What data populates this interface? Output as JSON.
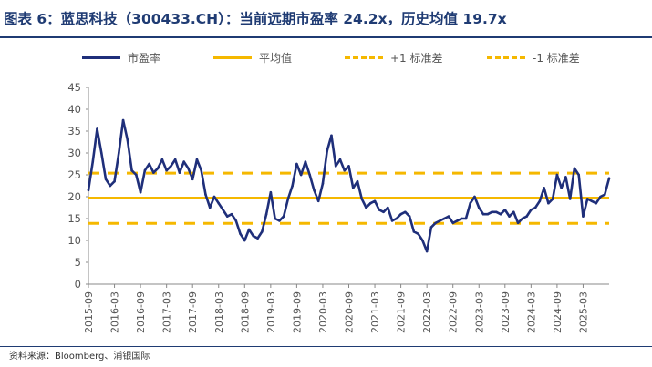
{
  "title": "图表 6：蓝思科技（300433.CH）：当前远期市盈率 24.2x，历史均值 19.7x",
  "source": "资料来源：Bloomberg、浦银国际",
  "colors": {
    "pe": "#1f2f7a",
    "mean": "#f5b800",
    "band": "#f5b800",
    "title": "#1f3b73"
  },
  "chart_data": {
    "type": "line",
    "ylim": [
      0,
      45
    ],
    "yticks": [
      0,
      5,
      10,
      15,
      20,
      25,
      30,
      35,
      40,
      45
    ],
    "xticks": [
      "2015-09",
      "2016-03",
      "2016-09",
      "2017-03",
      "2017-09",
      "2018-03",
      "2018-09",
      "2019-03",
      "2019-09",
      "2020-03",
      "2020-09",
      "2021-03",
      "2021-09",
      "2022-03",
      "2022-09",
      "2023-03",
      "2023-09",
      "2024-03",
      "2024-09",
      "2025-03"
    ],
    "xrange": [
      "2015-09",
      "2025-09"
    ],
    "grid": false,
    "legend_position": "top",
    "mean": 19.7,
    "plus1": 25.4,
    "minus1": 13.9,
    "legend": [
      "市盈率",
      "平均值",
      "+1 标准差",
      "-1 标准差"
    ],
    "series": [
      {
        "name": "市盈率",
        "x": [
          "2015-09",
          "2015-10",
          "2015-11",
          "2015-12",
          "2016-01",
          "2016-02",
          "2016-03",
          "2016-04",
          "2016-05",
          "2016-06",
          "2016-07",
          "2016-08",
          "2016-09",
          "2016-10",
          "2016-11",
          "2016-12",
          "2017-01",
          "2017-02",
          "2017-03",
          "2017-04",
          "2017-05",
          "2017-06",
          "2017-07",
          "2017-08",
          "2017-09",
          "2017-10",
          "2017-11",
          "2017-12",
          "2018-01",
          "2018-02",
          "2018-03",
          "2018-04",
          "2018-05",
          "2018-06",
          "2018-07",
          "2018-08",
          "2018-09",
          "2018-10",
          "2018-11",
          "2018-12",
          "2019-01",
          "2019-02",
          "2019-03",
          "2019-04",
          "2019-05",
          "2019-06",
          "2019-07",
          "2019-08",
          "2019-09",
          "2019-10",
          "2019-11",
          "2019-12",
          "2020-01",
          "2020-02",
          "2020-03",
          "2020-04",
          "2020-05",
          "2020-06",
          "2020-07",
          "2020-08",
          "2020-09",
          "2020-10",
          "2020-11",
          "2020-12",
          "2021-01",
          "2021-02",
          "2021-03",
          "2021-04",
          "2021-05",
          "2021-06",
          "2021-07",
          "2021-08",
          "2021-09",
          "2021-10",
          "2021-11",
          "2021-12",
          "2022-01",
          "2022-02",
          "2022-03",
          "2022-04",
          "2022-05",
          "2022-06",
          "2022-07",
          "2022-08",
          "2022-09",
          "2022-10",
          "2022-11",
          "2022-12",
          "2023-01",
          "2023-02",
          "2023-03",
          "2023-04",
          "2023-05",
          "2023-06",
          "2023-07",
          "2023-08",
          "2023-09",
          "2023-10",
          "2023-11",
          "2023-12",
          "2024-01",
          "2024-02",
          "2024-03",
          "2024-04",
          "2024-05",
          "2024-06",
          "2024-07",
          "2024-08",
          "2024-09",
          "2024-10",
          "2024-11",
          "2024-12",
          "2025-01",
          "2025-02",
          "2025-03",
          "2025-04",
          "2025-05",
          "2025-06",
          "2025-07",
          "2025-08",
          "2025-09"
        ],
        "values": [
          21.5,
          28.0,
          35.5,
          30.0,
          24.0,
          22.5,
          23.5,
          30.0,
          37.5,
          33.0,
          26.0,
          25.0,
          21.0,
          26.0,
          27.5,
          25.5,
          26.5,
          28.5,
          26.0,
          27.0,
          28.5,
          25.5,
          28.0,
          26.5,
          24.0,
          28.5,
          26.0,
          20.5,
          17.5,
          20.0,
          18.5,
          17.0,
          15.5,
          16.0,
          14.5,
          11.5,
          10.0,
          12.5,
          11.0,
          10.5,
          12.0,
          16.0,
          21.0,
          15.0,
          14.5,
          15.5,
          19.5,
          22.5,
          27.5,
          25.0,
          28.0,
          25.0,
          21.5,
          19.0,
          23.0,
          30.5,
          34.0,
          27.0,
          28.5,
          26.0,
          27.0,
          22.0,
          23.5,
          19.5,
          17.5,
          18.5,
          19.0,
          17.0,
          16.5,
          17.5,
          14.5,
          15.0,
          16.0,
          16.5,
          15.5,
          12.0,
          11.5,
          10.0,
          7.5,
          13.0,
          14.0,
          14.5,
          15.0,
          15.5,
          14.0,
          14.5,
          15.0,
          15.0,
          18.5,
          20.0,
          17.5,
          16.0,
          16.0,
          16.5,
          16.5,
          16.0,
          17.0,
          15.5,
          16.5,
          14.0,
          15.0,
          15.5,
          17.0,
          17.5,
          19.0,
          22.0,
          18.5,
          19.5,
          25.0,
          22.0,
          24.5,
          19.5,
          26.5,
          25.0,
          15.5,
          19.5,
          19.0,
          18.5,
          20.0,
          20.5,
          24.2
        ]
      }
    ]
  }
}
